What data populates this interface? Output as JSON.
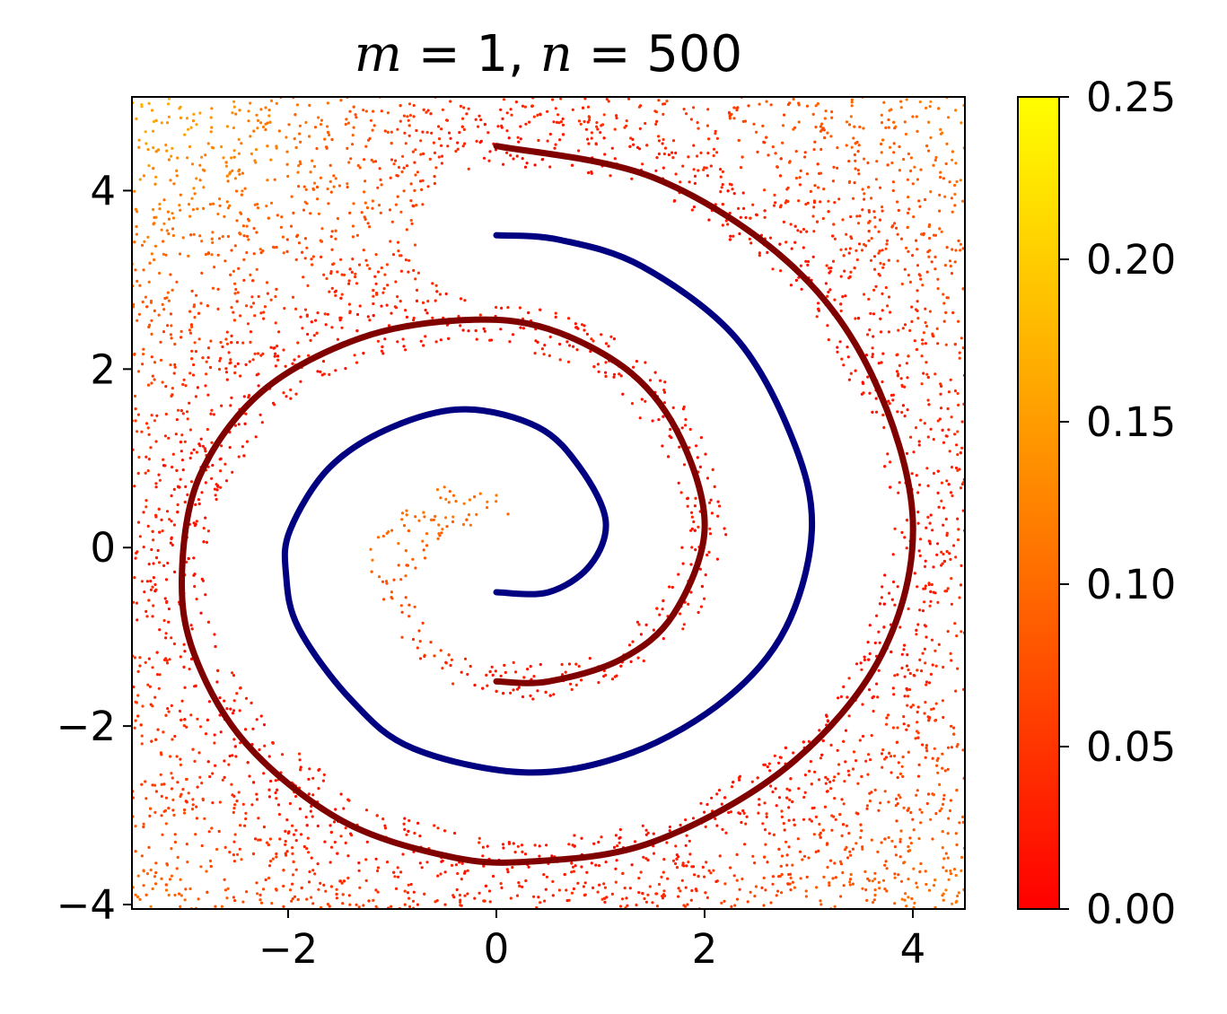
{
  "chart_data": {
    "type": "scatter",
    "title": {
      "m_sym": "m",
      "m_val": "= 1,",
      "n_sym": "n",
      "n_val": "= 500"
    },
    "xlim": [
      -3.5,
      4.5
    ],
    "ylim": [
      -4.05,
      5.05
    ],
    "x_ticks": [
      {
        "value": -2,
        "label": "−2"
      },
      {
        "value": 0,
        "label": "0"
      },
      {
        "value": 2,
        "label": "2"
      },
      {
        "value": 4,
        "label": "4"
      }
    ],
    "y_ticks": [
      {
        "value": -4,
        "label": "−4"
      },
      {
        "value": -2,
        "label": "−2"
      },
      {
        "value": 0,
        "label": "0"
      },
      {
        "value": 2,
        "label": "2"
      },
      {
        "value": 4,
        "label": "4"
      }
    ],
    "grid": false,
    "colorbar": {
      "range": [
        0.0,
        0.25
      ],
      "colors": [
        "#ff0000",
        "#ffff00"
      ],
      "ticks": [
        {
          "value": 0.0,
          "label": "0.00"
        },
        {
          "value": 0.05,
          "label": "0.05"
        },
        {
          "value": 0.1,
          "label": "0.10"
        },
        {
          "value": 0.15,
          "label": "0.15"
        },
        {
          "value": 0.2,
          "label": "0.20"
        },
        {
          "value": 0.25,
          "label": "0.25"
        }
      ]
    },
    "curves": [
      {
        "color": "#000080",
        "points": [
          [
            0,
            -0.5
          ],
          [
            0.5,
            -0.5
          ],
          [
            0.9,
            -0.2
          ],
          [
            1.05,
            0.3
          ],
          [
            0.8,
            0.9
          ],
          [
            0.4,
            1.35
          ],
          [
            -0.3,
            1.55
          ],
          [
            -1.0,
            1.35
          ],
          [
            -1.6,
            0.9
          ],
          [
            -1.98,
            0.2
          ],
          [
            -2.02,
            -0.3
          ],
          [
            -1.9,
            -0.9
          ],
          [
            -1.4,
            -1.7
          ],
          [
            -0.8,
            -2.25
          ],
          [
            0.3,
            -2.52
          ],
          [
            1.3,
            -2.3
          ],
          [
            2.2,
            -1.7
          ],
          [
            2.78,
            -0.9
          ],
          [
            3.03,
            0.2
          ],
          [
            2.85,
            1.2
          ],
          [
            2.3,
            2.35
          ],
          [
            1.4,
            3.15
          ],
          [
            0.6,
            3.45
          ],
          [
            0,
            3.5
          ]
        ]
      },
      {
        "color": "#800000",
        "points": [
          [
            0,
            -1.5
          ],
          [
            0.5,
            -1.5
          ],
          [
            1.2,
            -1.25
          ],
          [
            1.7,
            -0.75
          ],
          [
            2.0,
            0.2
          ],
          [
            1.78,
            1.2
          ],
          [
            1.3,
            1.95
          ],
          [
            0.5,
            2.45
          ],
          [
            -0.3,
            2.55
          ],
          [
            -1.3,
            2.35
          ],
          [
            -2.25,
            1.75
          ],
          [
            -2.85,
            0.8
          ],
          [
            -3.02,
            -0.3
          ],
          [
            -2.9,
            -1.2
          ],
          [
            -2.4,
            -2.2
          ],
          [
            -1.5,
            -3.05
          ],
          [
            -0.5,
            -3.45
          ],
          [
            0.3,
            -3.52
          ],
          [
            1.5,
            -3.3
          ],
          [
            2.8,
            -2.45
          ],
          [
            3.7,
            -1.2
          ],
          [
            4.0,
            0.3
          ],
          [
            3.6,
            1.95
          ],
          [
            2.8,
            3.2
          ],
          [
            1.5,
            4.15
          ],
          [
            0,
            4.5
          ]
        ]
      }
    ]
  }
}
